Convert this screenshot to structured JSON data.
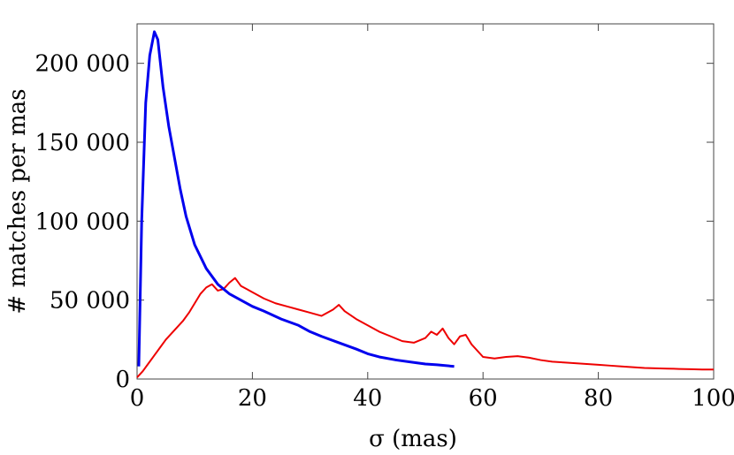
{
  "chart_data": {
    "type": "line",
    "title": "",
    "xlabel": "σ (mas)",
    "ylabel": "# matches per mas",
    "xlim": [
      0,
      100
    ],
    "ylim": [
      0,
      225000
    ],
    "grid": false,
    "x_ticks": [
      0,
      20,
      40,
      60,
      80,
      100
    ],
    "x_tick_labels": [
      "0",
      "20",
      "40",
      "60",
      "80",
      "100"
    ],
    "y_ticks": [
      0,
      50000,
      100000,
      150000,
      200000
    ],
    "y_tick_labels": [
      "0",
      "50 000",
      "100 000",
      "150 000",
      "200 000"
    ],
    "series": [
      {
        "color": "#0000ee",
        "x": [
          0.3,
          0.8,
          1.5,
          2.2,
          3.0,
          3.6,
          4.5,
          5.5,
          6.5,
          7.5,
          8.5,
          10,
          12,
          14,
          16,
          18,
          20,
          22,
          25,
          28,
          30,
          32,
          35,
          38,
          40,
          42,
          45,
          48,
          50,
          52,
          55
        ],
        "y": [
          8000,
          100000,
          175000,
          205000,
          220000,
          215000,
          185000,
          160000,
          140000,
          120000,
          103000,
          85000,
          70000,
          60000,
          54000,
          50000,
          46000,
          43000,
          38000,
          34000,
          30000,
          27000,
          23000,
          19000,
          16000,
          14000,
          12000,
          10500,
          9500,
          9000,
          8000
        ]
      },
      {
        "color": "#ee0000",
        "x": [
          0,
          1,
          2,
          3,
          4,
          5,
          6,
          7,
          8,
          9,
          10,
          11,
          12,
          13,
          14,
          15,
          16,
          17,
          18,
          19,
          20,
          22,
          24,
          26,
          28,
          30,
          32,
          34,
          35,
          36,
          38,
          40,
          42,
          44,
          46,
          48,
          50,
          51,
          52,
          53,
          54,
          55,
          56,
          57,
          58,
          60,
          62,
          64,
          66,
          68,
          70,
          72,
          74,
          76,
          78,
          80,
          82,
          84,
          86,
          88,
          90,
          92,
          94,
          96,
          98,
          100
        ],
        "y": [
          1000,
          5000,
          10000,
          15000,
          20000,
          25000,
          29000,
          33000,
          37000,
          42000,
          48000,
          54000,
          58000,
          60000,
          56000,
          57000,
          61000,
          64000,
          59000,
          57000,
          55000,
          51000,
          48000,
          46000,
          44000,
          42000,
          40000,
          44000,
          47000,
          43000,
          38000,
          34000,
          30000,
          27000,
          24000,
          23000,
          26000,
          30000,
          28000,
          32000,
          26000,
          22000,
          27000,
          28000,
          22000,
          14000,
          13000,
          14000,
          14500,
          13500,
          12000,
          11000,
          10500,
          10000,
          9500,
          9000,
          8500,
          8000,
          7500,
          7000,
          6800,
          6600,
          6400,
          6200,
          6000,
          6000
        ]
      }
    ]
  }
}
